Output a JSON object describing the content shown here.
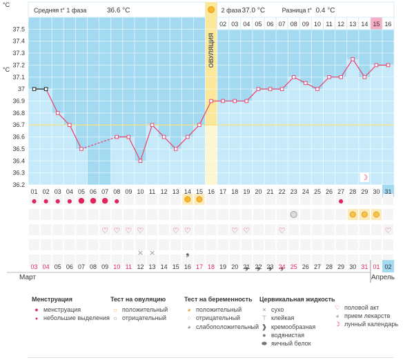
{
  "chart_data": {
    "type": "line",
    "y_unit": "°C",
    "ylim": [
      36.2,
      37.6
    ],
    "yticks": [
      "37.5",
      "37.4",
      "37.3",
      "37.2",
      "37.1",
      "37",
      "36.9",
      "36.8",
      "36.7",
      "36.6",
      "36.5",
      "36.4",
      "36.3",
      "36.2"
    ],
    "phase1_label": "Средняя t° 1 фаза",
    "phase1_value": "36.6 °C",
    "phase2_label": "2 фаза",
    "phase2_value": "37.0 °C",
    "diff_label": "Разница t°",
    "diff_value": "0.4 °C",
    "ovulation_label": "ОВУЛЯЦИЯ",
    "coverline": 36.7,
    "cycle_days": [
      "01",
      "02",
      "03",
      "04",
      "05",
      "06",
      "07",
      "08",
      "09",
      "10",
      "11",
      "12",
      "13",
      "14",
      "15",
      "01",
      "02",
      "03",
      "04",
      "05",
      "06",
      "07",
      "08",
      "09",
      "10",
      "11",
      "12",
      "13",
      "14",
      "15",
      "16"
    ],
    "dates": [
      "01",
      "02",
      "03",
      "04",
      "05",
      "06",
      "07",
      "08",
      "09",
      "10",
      "11",
      "12",
      "13",
      "14",
      "15",
      "16",
      "17",
      "18",
      "19",
      "20",
      "21",
      "22",
      "23",
      "24",
      "25",
      "26",
      "27",
      "28",
      "29",
      "30",
      "31"
    ],
    "calendar_dates": [
      "03",
      "04",
      "05",
      "06",
      "07",
      "08",
      "09",
      "10",
      "11",
      "12",
      "13",
      "14",
      "15",
      "16",
      "17",
      "18",
      "19",
      "20",
      "21",
      "22",
      "23",
      "24",
      "25",
      "26",
      "27",
      "28",
      "29",
      "30",
      "31",
      "01",
      "02"
    ],
    "red_calendar_indexes": [
      0,
      1,
      7,
      8,
      14,
      15,
      21,
      22,
      28,
      29
    ],
    "ovulation_index": 15,
    "temperatures": [
      37.0,
      37.0,
      36.8,
      36.7,
      36.5,
      null,
      null,
      36.6,
      36.6,
      36.4,
      36.7,
      36.6,
      36.5,
      36.6,
      36.7,
      36.9,
      36.9,
      36.9,
      36.9,
      37.0,
      37.0,
      37.0,
      37.1,
      37.05,
      37.0,
      37.1,
      37.1,
      37.25,
      37.1,
      37.2,
      37.2
    ],
    "dashed_segment": [
      4,
      7
    ],
    "menstruation": [
      "small",
      "small",
      "small",
      "small",
      "full",
      "full",
      "full",
      "small"
    ],
    "ovulation_tests_positive": [
      13,
      14
    ],
    "pregnancy_test_faint": [
      22
    ],
    "medicine_indexes": [
      27,
      28,
      29
    ],
    "intercourse_indexes": [
      6,
      7,
      8,
      9,
      12,
      13,
      17,
      18,
      21,
      30
    ],
    "discharge_sticky": [
      9,
      10
    ],
    "discharge_creamy": [
      13,
      18,
      19,
      20,
      21
    ],
    "lunar_index": [
      28
    ],
    "month_start": "Март",
    "month_end": "Апрель",
    "current_index": 30,
    "colors": {
      "phase1": "#a3daf2",
      "phase2": "#c6eafa",
      "ovulation": "#fbe89a",
      "line": "#e84870",
      "menstruation": "#e0245e",
      "highlight": "#f7aec2"
    }
  },
  "legend": {
    "menstruation": {
      "title": "Менструация",
      "items": [
        "менструация",
        "небольшие выделения"
      ]
    },
    "ovulation_test": {
      "title": "Тест на овуляцию",
      "items": [
        "положительный",
        "отрицательный"
      ]
    },
    "pregnancy_test": {
      "title": "Тест на беременность",
      "items": [
        "положительный",
        "отрицательный",
        "слабоположительный"
      ]
    },
    "cervical_fluid": {
      "title": "Цервикальная жидкость",
      "items": [
        "сухо",
        "клейкая",
        "кремообразная",
        "водянистая",
        "яичный белок"
      ]
    },
    "other": {
      "items": [
        "половой акт",
        "прием лекарств",
        "лунный календарь"
      ]
    }
  }
}
